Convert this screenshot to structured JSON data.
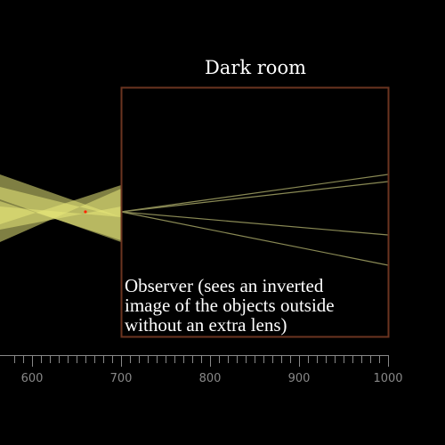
{
  "room": {
    "title": "Dark room",
    "border_color": "#6b3420"
  },
  "observer": {
    "lines": [
      "Observer (sees an inverted",
      "image of the objects outside",
      "without an extra lens)"
    ]
  },
  "pinhole": {
    "position": 700
  },
  "light": {
    "beam_color": "#e8e87a",
    "ray_color": "#8a8a55",
    "source_marker_color": "#ff2200",
    "source_marker_position": 660
  },
  "ruler": {
    "min": 580,
    "max": 1000,
    "minor_step": 10,
    "major_step": 100,
    "labels": [
      "600",
      "700",
      "800",
      "900",
      "1000"
    ],
    "color": "#888888"
  }
}
